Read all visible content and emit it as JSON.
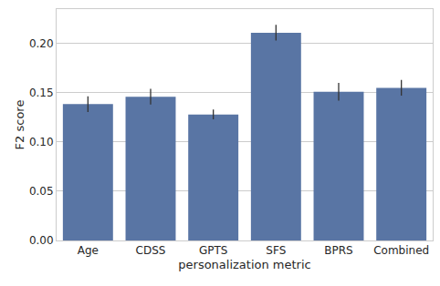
{
  "chart_data": {
    "type": "bar",
    "x_label": "personalization metric",
    "y_label": "F2 score",
    "categories": [
      "Age",
      "CDSS",
      "GPTS",
      "SFS",
      "BPRS",
      "Combined"
    ],
    "values": [
      0.1385,
      0.146,
      0.128,
      0.211,
      0.151,
      0.155
    ],
    "errors": [
      0.008,
      0.008,
      0.005,
      0.008,
      0.009,
      0.008
    ],
    "color": "#5975a4",
    "ylim": [
      0,
      0.235
    ],
    "yticks": [
      {
        "value": 0,
        "label": "0.00"
      },
      {
        "value": 0.05,
        "label": "0.05"
      },
      {
        "value": 0.1,
        "label": "0.10"
      },
      {
        "value": 0.15,
        "label": "0.15"
      },
      {
        "value": 0.2,
        "label": "0.20"
      }
    ],
    "grid": true
  }
}
